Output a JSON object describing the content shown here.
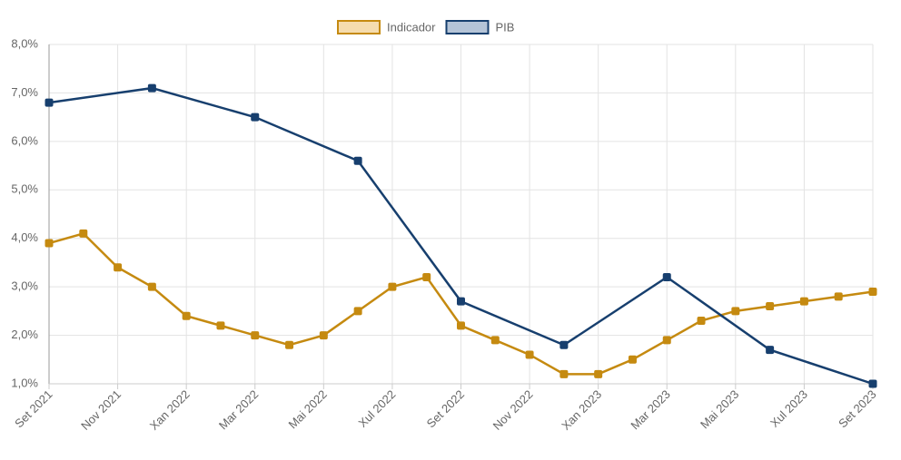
{
  "chart_data": {
    "type": "line",
    "categories": [
      "Set 2021",
      null,
      "Nov 2021",
      null,
      "Xan 2022",
      null,
      "Mar 2022",
      null,
      "Mai 2022",
      null,
      "Xul 2022",
      null,
      "Set 2022",
      null,
      "Nov 2022",
      null,
      "Xan 2023",
      null,
      "Mar 2023",
      null,
      "Mai 2023",
      null,
      "Xul 2023",
      null,
      "Set 2023"
    ],
    "series": [
      {
        "name": "Indicador",
        "color": "#c58a10",
        "fill": "#f5dcae",
        "values": [
          3.9,
          4.1,
          3.4,
          3.0,
          2.4,
          2.2,
          2.0,
          1.8,
          2.0,
          2.5,
          3.0,
          3.2,
          2.2,
          1.9,
          1.6,
          1.2,
          1.2,
          1.5,
          1.9,
          2.3,
          2.5,
          2.6,
          2.7,
          2.8,
          2.9
        ]
      },
      {
        "name": "PIB",
        "color": "#173f6e",
        "fill": "#b5c4d7",
        "values": [
          6.8,
          null,
          null,
          7.1,
          null,
          null,
          6.5,
          null,
          null,
          5.6,
          null,
          null,
          2.7,
          null,
          null,
          1.8,
          null,
          null,
          3.2,
          null,
          null,
          1.7,
          null,
          null,
          1.0
        ]
      }
    ],
    "span_gaps": true,
    "ylim": [
      1,
      8
    ],
    "yticks": [
      {
        "value": 1,
        "label": "1,0%"
      },
      {
        "value": 2,
        "label": "2,0%"
      },
      {
        "value": 3,
        "label": "3,0%"
      },
      {
        "value": 4,
        "label": "4,0%"
      },
      {
        "value": 5,
        "label": "5,0%"
      },
      {
        "value": 6,
        "label": "6,0%"
      },
      {
        "value": 7,
        "label": "7,0%"
      },
      {
        "value": 8,
        "label": "8,0%"
      }
    ],
    "grid": true,
    "legend": "top"
  }
}
